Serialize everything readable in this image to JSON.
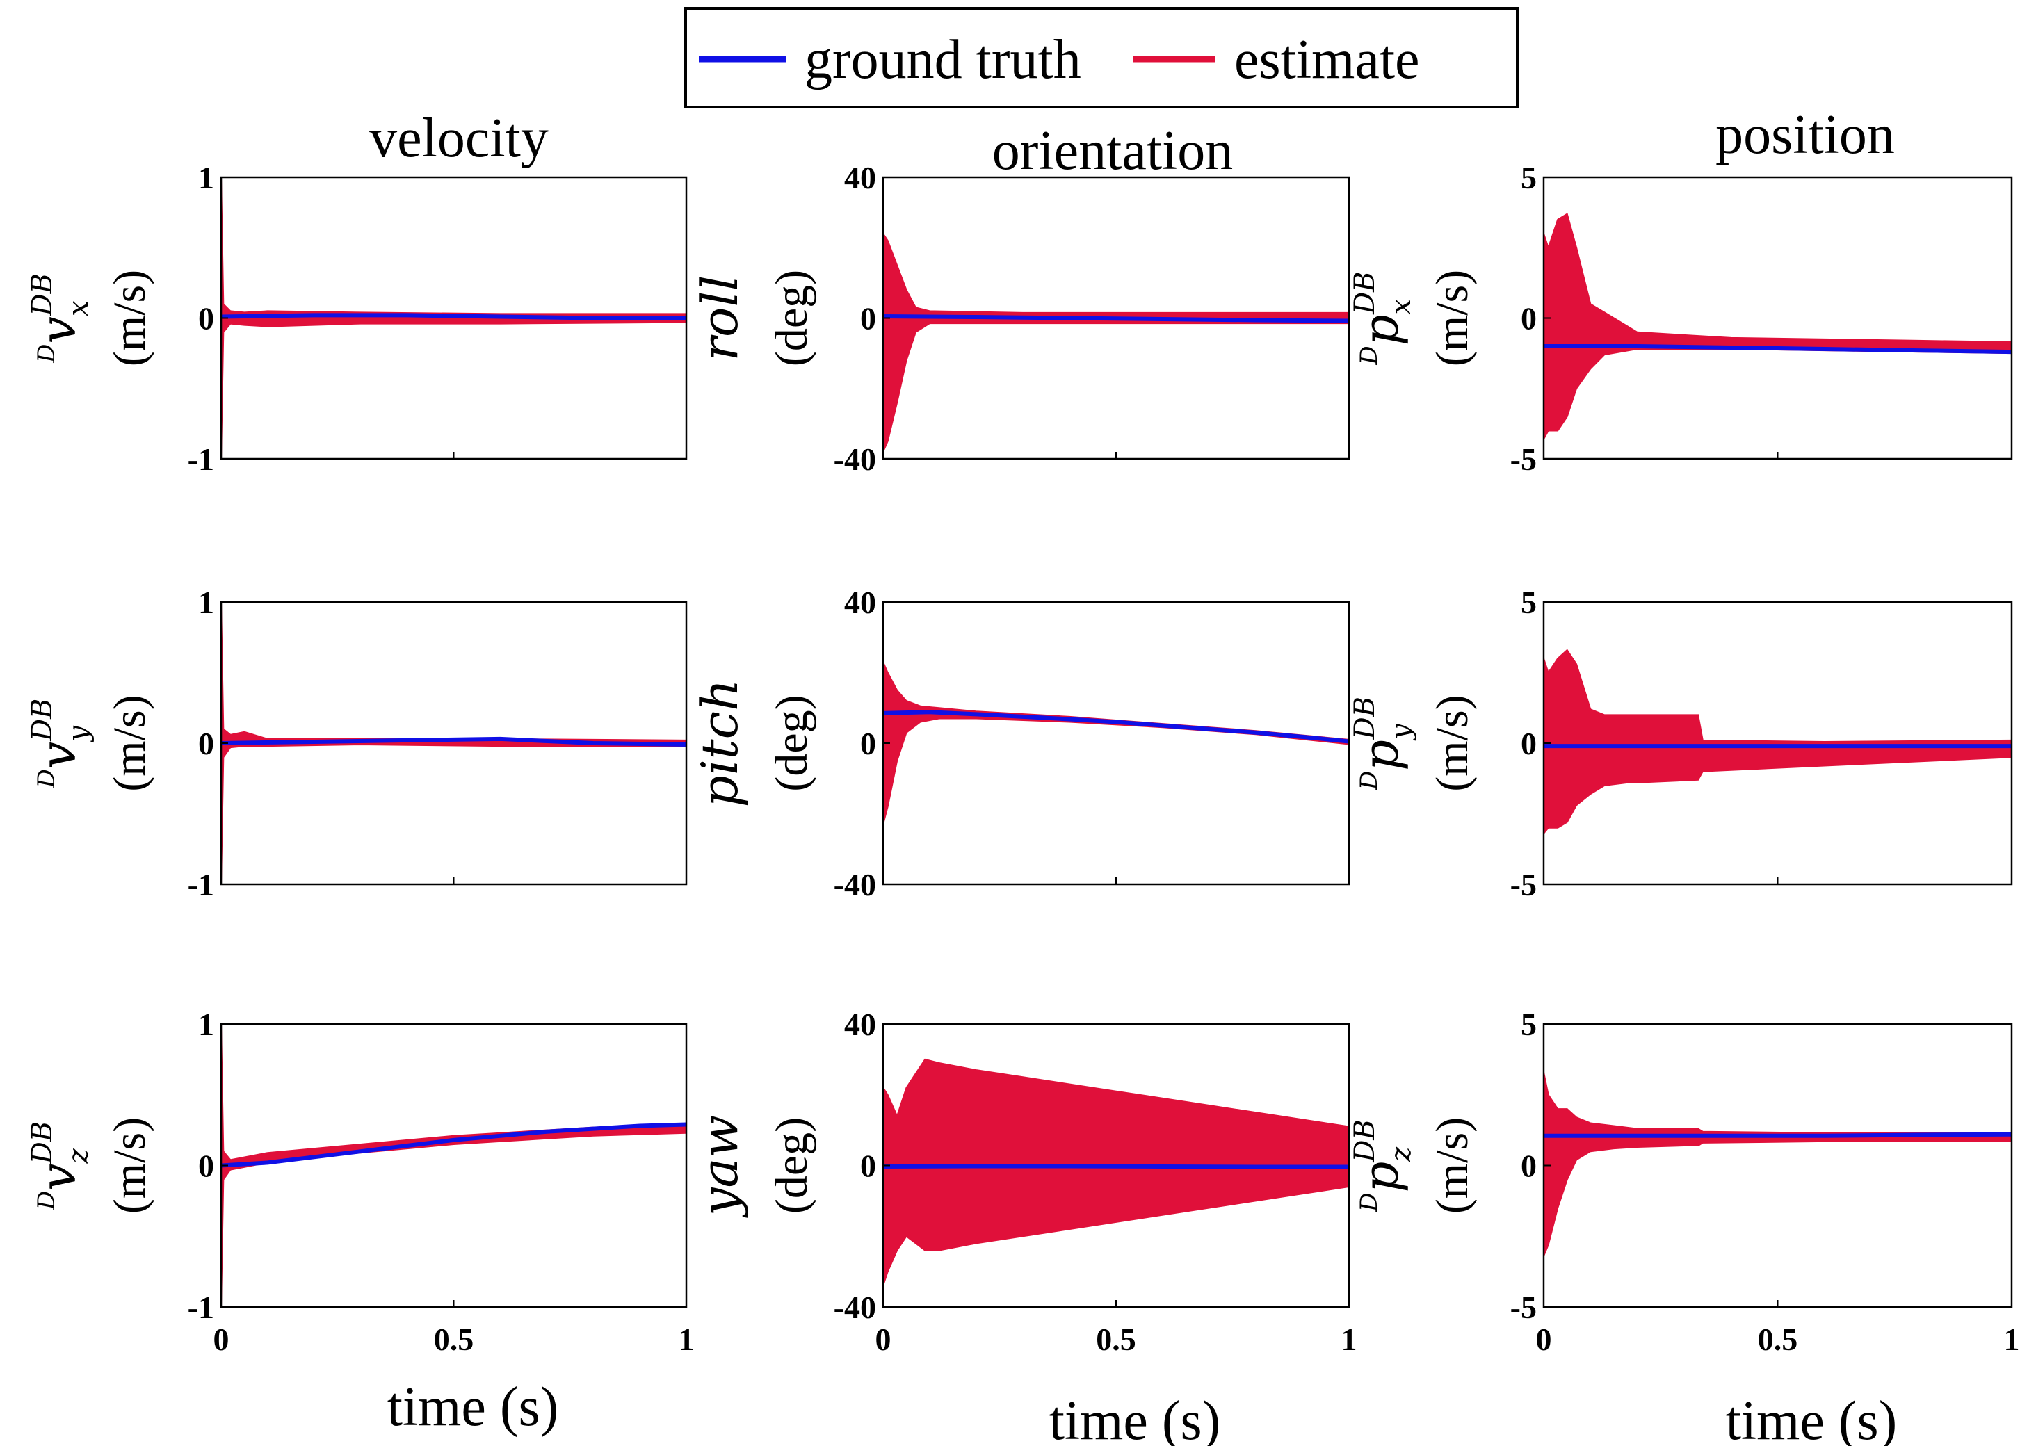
{
  "legend": {
    "ground_truth_label": "ground truth",
    "estimate_label": "estimate",
    "ground_truth_color": "#1010e6",
    "estimate_color": "#e0103a"
  },
  "columns": {
    "velocity_title": "velocity",
    "orientation_title": "orientation",
    "position_title": "position"
  },
  "xlabel": "time (s)",
  "chart_data": [
    {
      "type": "line",
      "id": "vx",
      "column": "velocity",
      "ylabel_base": "v",
      "ylabel_sub": "x",
      "ylabel_sup": "DB",
      "ylabel_pre": "D",
      "ylabel_unit": "(m/s)",
      "xlim": [
        0,
        1
      ],
      "ylim": [
        -1,
        1
      ],
      "xticks": [],
      "yticks": [
        "1",
        "0",
        "-1"
      ],
      "ground_truth": {
        "x": [
          0,
          0.2,
          0.4,
          0.6,
          0.8,
          1.0
        ],
        "y": [
          0.01,
          0.02,
          0.02,
          0.01,
          0.0,
          0.0
        ]
      },
      "estimate_band": {
        "x": [
          0,
          0.005,
          0.02,
          0.05,
          0.1,
          0.3,
          0.6,
          1.0
        ],
        "upper": [
          1.0,
          0.1,
          0.05,
          0.04,
          0.05,
          0.04,
          0.03,
          0.03
        ],
        "lower": [
          -1.0,
          -0.1,
          -0.04,
          -0.05,
          -0.06,
          -0.04,
          -0.04,
          -0.03
        ]
      }
    },
    {
      "type": "line",
      "id": "vy",
      "column": "velocity",
      "ylabel_base": "v",
      "ylabel_sub": "y",
      "ylabel_sup": "DB",
      "ylabel_pre": "D",
      "ylabel_unit": "(m/s)",
      "xlim": [
        0,
        1
      ],
      "ylim": [
        -1,
        1
      ],
      "xticks": [],
      "yticks": [
        "1",
        "0",
        "-1"
      ],
      "ground_truth": {
        "x": [
          0,
          0.2,
          0.4,
          0.6,
          0.8,
          1.0
        ],
        "y": [
          0.0,
          0.01,
          0.02,
          0.03,
          0.0,
          -0.01
        ]
      },
      "estimate_band": {
        "x": [
          0,
          0.005,
          0.02,
          0.05,
          0.1,
          0.3,
          0.6,
          1.0
        ],
        "upper": [
          1.0,
          0.1,
          0.06,
          0.08,
          0.03,
          0.03,
          0.03,
          0.02
        ],
        "lower": [
          -1.0,
          -0.1,
          -0.03,
          -0.02,
          -0.02,
          -0.01,
          -0.02,
          -0.02
        ]
      }
    },
    {
      "type": "line",
      "id": "vz",
      "column": "velocity",
      "ylabel_base": "v",
      "ylabel_sub": "z",
      "ylabel_sup": "DB",
      "ylabel_pre": "D",
      "ylabel_unit": "(m/s)",
      "xlim": [
        0,
        1
      ],
      "ylim": [
        -1,
        1
      ],
      "xticks": [
        "0",
        "0.5",
        "1"
      ],
      "yticks": [
        "1",
        "0",
        "-1"
      ],
      "ground_truth": {
        "x": [
          0,
          0.1,
          0.2,
          0.3,
          0.4,
          0.5,
          0.6,
          0.7,
          0.8,
          0.9,
          1.0
        ],
        "y": [
          0.0,
          0.02,
          0.06,
          0.1,
          0.14,
          0.18,
          0.21,
          0.24,
          0.26,
          0.28,
          0.29
        ]
      },
      "estimate_band": {
        "x": [
          0,
          0.005,
          0.02,
          0.1,
          0.2,
          0.3,
          0.4,
          0.5,
          0.6,
          0.7,
          0.8,
          0.9,
          1.0
        ],
        "upper": [
          1.0,
          0.1,
          0.04,
          0.09,
          0.12,
          0.15,
          0.18,
          0.21,
          0.23,
          0.25,
          0.27,
          0.28,
          0.29
        ],
        "lower": [
          -1.0,
          -0.1,
          -0.03,
          0.02,
          0.06,
          0.09,
          0.12,
          0.15,
          0.17,
          0.19,
          0.21,
          0.22,
          0.23
        ]
      }
    },
    {
      "type": "line",
      "id": "roll",
      "column": "orientation",
      "ylabel_base": "roll",
      "ylabel_unit": "(deg)",
      "xlim": [
        0,
        1
      ],
      "ylim": [
        -40,
        40
      ],
      "xticks": [],
      "yticks": [
        "40",
        "0",
        "-40"
      ],
      "ground_truth": {
        "x": [
          0,
          0.2,
          0.4,
          0.6,
          0.8,
          1.0
        ],
        "y": [
          0.5,
          0.3,
          0.0,
          -0.3,
          -0.6,
          -0.8
        ]
      },
      "estimate_band": {
        "x": [
          0,
          0.01,
          0.03,
          0.05,
          0.07,
          0.1,
          0.3,
          0.6,
          1.0
        ],
        "upper": [
          24,
          22,
          15,
          8,
          3,
          2,
          1.5,
          1.5,
          1.5
        ],
        "lower": [
          -38,
          -35,
          -24,
          -12,
          -4,
          -1.5,
          -1.5,
          -1.5,
          -1.5
        ]
      }
    },
    {
      "type": "line",
      "id": "pitch",
      "column": "orientation",
      "ylabel_base": "pitch",
      "ylabel_unit": "(deg)",
      "xlim": [
        0,
        1
      ],
      "ylim": [
        -40,
        40
      ],
      "xticks": [],
      "yticks": [
        "40",
        "0",
        "-40"
      ],
      "ground_truth": {
        "x": [
          0,
          0.1,
          0.2,
          0.3,
          0.4,
          0.5,
          0.6,
          0.7,
          0.8,
          0.9,
          1.0
        ],
        "y": [
          8.5,
          8.8,
          8.2,
          7.5,
          6.8,
          6.0,
          5.0,
          4.0,
          3.0,
          1.8,
          0.5
        ]
      },
      "estimate_band": {
        "x": [
          0,
          0.01,
          0.03,
          0.05,
          0.08,
          0.12,
          0.2,
          0.4,
          0.6,
          0.8,
          1.0
        ],
        "upper": [
          23,
          20,
          15,
          12,
          10.5,
          10,
          9,
          7.5,
          5.5,
          3.5,
          1.0
        ],
        "lower": [
          -23,
          -18,
          -5,
          3,
          6,
          7,
          7,
          6,
          4.5,
          2.5,
          -0.3
        ]
      }
    },
    {
      "type": "line",
      "id": "yaw",
      "column": "orientation",
      "ylabel_base": "yaw",
      "ylabel_unit": "(deg)",
      "xlim": [
        0,
        1
      ],
      "ylim": [
        -40,
        40
      ],
      "xticks": [
        "0",
        "0.5",
        "1"
      ],
      "yticks": [
        "40",
        "0",
        "-40"
      ],
      "ground_truth": {
        "x": [
          0,
          0.2,
          0.4,
          0.6,
          0.8,
          1.0
        ],
        "y": [
          -0.3,
          -0.2,
          -0.2,
          -0.3,
          -0.4,
          -0.4
        ]
      },
      "estimate_band": {
        "x": [
          0,
          0.01,
          0.03,
          0.05,
          0.07,
          0.09,
          0.12,
          0.2,
          0.3,
          0.5,
          0.7,
          0.85,
          1.0
        ],
        "upper": [
          22,
          20,
          14,
          22,
          26,
          30,
          29,
          27,
          25,
          21,
          17,
          14,
          11
        ],
        "lower": [
          -34,
          -30,
          -24,
          -20,
          -22,
          -24,
          -24,
          -22,
          -20,
          -16,
          -12,
          -9,
          -6
        ]
      }
    },
    {
      "type": "line",
      "id": "px",
      "column": "position",
      "ylabel_base": "p",
      "ylabel_sub": "x",
      "ylabel_sup": "DB",
      "ylabel_pre": "D",
      "ylabel_unit": "(m/s)",
      "xlim": [
        0,
        1
      ],
      "ylim": [
        -5,
        5
      ],
      "xticks": [],
      "yticks": [
        "5",
        "0",
        "-5"
      ],
      "ground_truth": {
        "x": [
          0,
          0.2,
          0.4,
          0.6,
          0.8,
          1.0
        ],
        "y": [
          -1.0,
          -1.0,
          -1.05,
          -1.1,
          -1.15,
          -1.2
        ]
      },
      "estimate_band": {
        "x": [
          0,
          0.01,
          0.03,
          0.05,
          0.07,
          0.1,
          0.13,
          0.2,
          0.4,
          0.6,
          0.8,
          1.0
        ],
        "upper": [
          3.0,
          2.5,
          3.5,
          3.7,
          2.5,
          0.5,
          0.2,
          -0.5,
          -0.7,
          -0.75,
          -0.8,
          -0.85
        ],
        "lower": [
          -4.3,
          -4.0,
          -4.0,
          -3.5,
          -2.5,
          -1.8,
          -1.3,
          -1.1,
          -1.1,
          -1.15,
          -1.2,
          -1.25
        ]
      }
    },
    {
      "type": "line",
      "id": "py",
      "column": "position",
      "ylabel_base": "p",
      "ylabel_sub": "y",
      "ylabel_sup": "DB",
      "ylabel_pre": "D",
      "ylabel_unit": "(m/s)",
      "xlim": [
        0,
        1
      ],
      "ylim": [
        -5,
        5
      ],
      "xticks": [],
      "yticks": [
        "5",
        "0",
        "-5"
      ],
      "ground_truth": {
        "x": [
          0,
          0.2,
          0.4,
          0.6,
          0.8,
          1.0
        ],
        "y": [
          -0.1,
          -0.1,
          -0.1,
          -0.1,
          -0.1,
          -0.1
        ]
      },
      "estimate_band": {
        "x": [
          0,
          0.01,
          0.03,
          0.05,
          0.07,
          0.1,
          0.13,
          0.18,
          0.2,
          0.33,
          0.34,
          0.6,
          1.0
        ],
        "upper": [
          3.0,
          2.5,
          3.0,
          3.3,
          2.8,
          1.2,
          1.0,
          1.0,
          1.0,
          1.0,
          0.1,
          0.05,
          0.1
        ],
        "lower": [
          -3.2,
          -3.0,
          -3.0,
          -2.8,
          -2.2,
          -1.8,
          -1.5,
          -1.4,
          -1.4,
          -1.3,
          -1.0,
          -0.8,
          -0.5
        ]
      }
    },
    {
      "type": "line",
      "id": "pz",
      "column": "position",
      "ylabel_base": "p",
      "ylabel_sub": "z",
      "ylabel_sup": "DB",
      "ylabel_pre": "D",
      "ylabel_unit": "(m/s)",
      "xlim": [
        0,
        1
      ],
      "ylim": [
        -5,
        5
      ],
      "xticks": [
        "0",
        "0.5",
        "1"
      ],
      "yticks": [
        "5",
        "0",
        "-5"
      ],
      "ground_truth": {
        "x": [
          0,
          0.2,
          0.4,
          0.6,
          0.8,
          1.0
        ],
        "y": [
          1.05,
          1.05,
          1.05,
          1.05,
          1.08,
          1.1
        ]
      },
      "estimate_band": {
        "x": [
          0,
          0.01,
          0.03,
          0.05,
          0.07,
          0.1,
          0.15,
          0.2,
          0.3,
          0.33,
          0.34,
          0.6,
          1.0
        ],
        "upper": [
          3.3,
          2.5,
          2.0,
          2.0,
          1.7,
          1.5,
          1.4,
          1.3,
          1.3,
          1.3,
          1.2,
          1.15,
          1.15
        ],
        "lower": [
          -3.2,
          -2.8,
          -1.5,
          -0.5,
          0.2,
          0.5,
          0.6,
          0.65,
          0.7,
          0.7,
          0.8,
          0.85,
          0.85
        ]
      }
    }
  ]
}
